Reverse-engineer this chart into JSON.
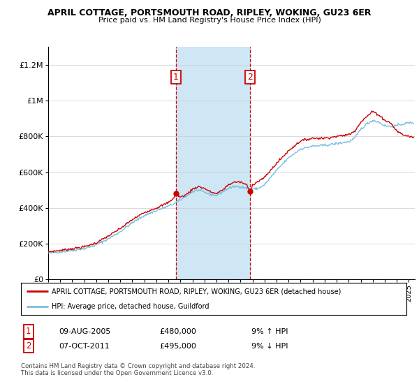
{
  "title": "APRIL COTTAGE, PORTSMOUTH ROAD, RIPLEY, WOKING, GU23 6ER",
  "subtitle": "Price paid vs. HM Land Registry's House Price Index (HPI)",
  "legend_line1": "APRIL COTTAGE, PORTSMOUTH ROAD, RIPLEY, WOKING, GU23 6ER (detached house)",
  "legend_line2": "HPI: Average price, detached house, Guildford",
  "footnote": "Contains HM Land Registry data © Crown copyright and database right 2024.\nThis data is licensed under the Open Government Licence v3.0.",
  "annotation1": {
    "label": "1",
    "date": "09-AUG-2005",
    "price": "£480,000",
    "hpi": "9% ↑ HPI"
  },
  "annotation2": {
    "label": "2",
    "date": "07-OCT-2011",
    "price": "£495,000",
    "hpi": "9% ↓ HPI"
  },
  "hpi_color": "#7abfde",
  "price_color": "#cc0000",
  "shading_color": "#cfe6f5",
  "annotation_color": "#cc0000",
  "ylim": [
    0,
    1300000
  ],
  "yticks": [
    0,
    200000,
    400000,
    600000,
    800000,
    1000000,
    1200000
  ],
  "ytick_labels": [
    "£0",
    "£200K",
    "£400K",
    "£600K",
    "£800K",
    "£1M",
    "£1.2M"
  ],
  "xmin": 1995,
  "xmax": 2025.5,
  "sale1_year": 2005.622,
  "sale2_year": 2011.786,
  "sale1_price": 480000,
  "sale2_price": 495000
}
